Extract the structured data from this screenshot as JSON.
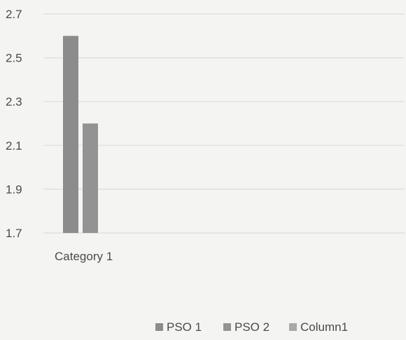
{
  "chart_data": {
    "type": "bar",
    "categories": [
      "Category 1"
    ],
    "series": [
      {
        "name": "PSO 1",
        "values": [
          2.6
        ],
        "color": "#8c8c8c"
      },
      {
        "name": "PSO 2",
        "values": [
          2.2
        ],
        "color": "#939393"
      },
      {
        "name": "Column1",
        "values": [
          null
        ],
        "color": "#a9a9a9"
      }
    ],
    "yticks": [
      "1.7",
      "1.9",
      "2.1",
      "2.3",
      "2.5",
      "2.7"
    ],
    "ylim": [
      1.7,
      2.7
    ],
    "grid": true,
    "legend": "bottom"
  }
}
